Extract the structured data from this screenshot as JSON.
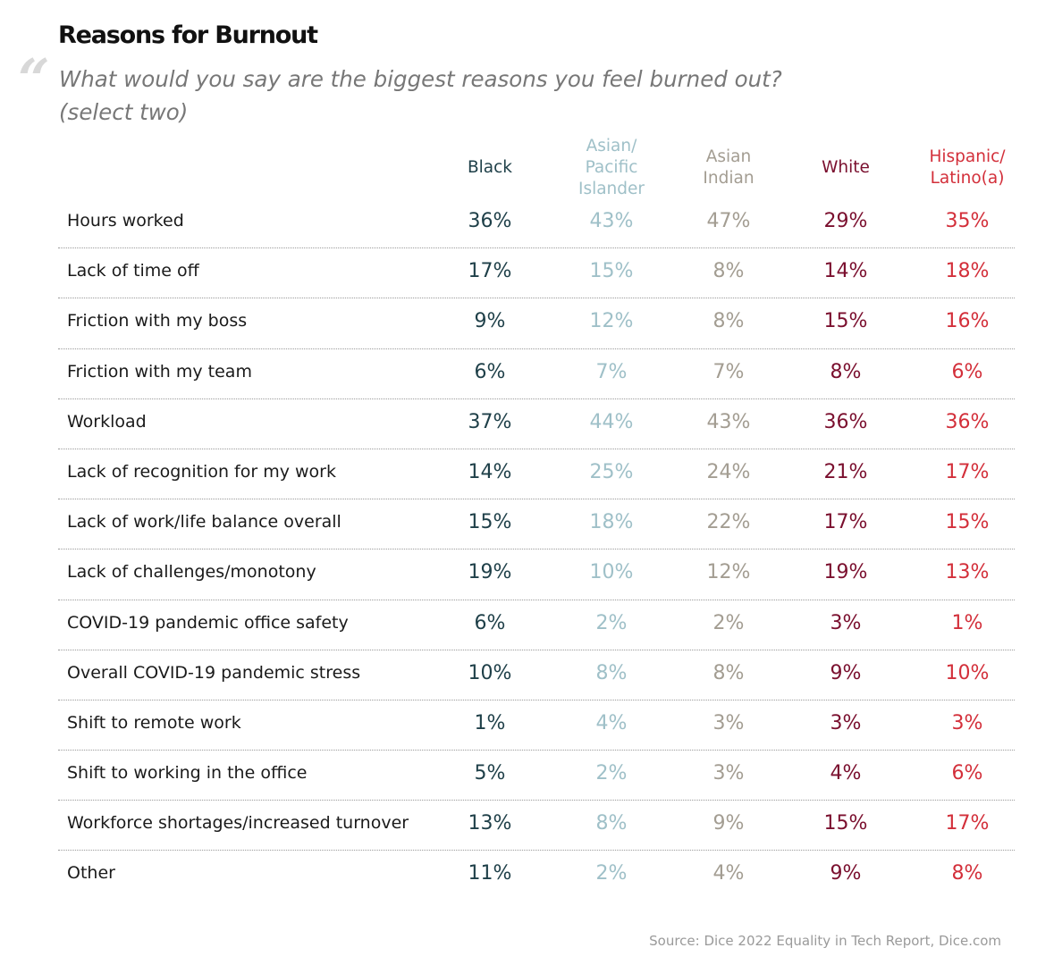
{
  "title": "Reasons for Burnout",
  "quote_glyph": "“",
  "question": "What would you say are the biggest reasons you feel burned out? (select two)",
  "source": "Source: Dice 2022 Equality in Tech Report, Dice.com",
  "chart_data": {
    "type": "table",
    "title": "Reasons for Burnout",
    "columns": [
      {
        "name": "Black",
        "color": "#1e3f48"
      },
      {
        "name": "Asian/\nPacific\nIslander",
        "color": "#9fc0c8"
      },
      {
        "name": "Asian\nIndian",
        "color": "#a39d92"
      },
      {
        "name": "White",
        "color": "#7a0f2e"
      },
      {
        "name": "Hispanic/\nLatino(a)",
        "color": "#d32f3a"
      }
    ],
    "rows": [
      {
        "label": "Hours worked",
        "values": [
          "36%",
          "43%",
          "47%",
          "29%",
          "35%"
        ]
      },
      {
        "label": "Lack of time off",
        "values": [
          "17%",
          "15%",
          "8%",
          "14%",
          "18%"
        ]
      },
      {
        "label": "Friction with my boss",
        "values": [
          "9%",
          "12%",
          "8%",
          "15%",
          "16%"
        ]
      },
      {
        "label": "Friction with my team",
        "values": [
          "6%",
          "7%",
          "7%",
          "8%",
          "6%"
        ]
      },
      {
        "label": "Workload",
        "values": [
          "37%",
          "44%",
          "43%",
          "36%",
          "36%"
        ]
      },
      {
        "label": "Lack of recognition for my work",
        "values": [
          "14%",
          "25%",
          "24%",
          "21%",
          "17%"
        ]
      },
      {
        "label": "Lack of work/life balance overall",
        "values": [
          "15%",
          "18%",
          "22%",
          "17%",
          "15%"
        ]
      },
      {
        "label": "Lack of challenges/monotony",
        "values": [
          "19%",
          "10%",
          "12%",
          "19%",
          "13%"
        ]
      },
      {
        "label": "COVID-19 pandemic office safety",
        "values": [
          "6%",
          "2%",
          "2%",
          "3%",
          "1%"
        ]
      },
      {
        "label": "Overall COVID-19 pandemic stress",
        "values": [
          "10%",
          "8%",
          "8%",
          "9%",
          "10%"
        ]
      },
      {
        "label": "Shift to remote work",
        "values": [
          "1%",
          "4%",
          "3%",
          "3%",
          "3%"
        ]
      },
      {
        "label": "Shift to working in the office",
        "values": [
          "5%",
          "2%",
          "3%",
          "4%",
          "6%"
        ]
      },
      {
        "label": "Workforce shortages/increased turnover",
        "values": [
          "13%",
          "8%",
          "9%",
          "15%",
          "17%"
        ]
      },
      {
        "label": "Other",
        "values": [
          "11%",
          "2%",
          "4%",
          "9%",
          "8%"
        ]
      }
    ]
  }
}
